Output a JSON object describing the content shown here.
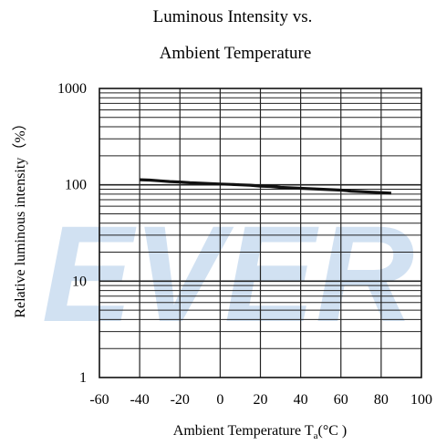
{
  "chart_data": {
    "type": "line",
    "title": [
      "Luminous Intensity vs.",
      "Ambient Temperature"
    ],
    "xlabel": "Ambient Temperature",
    "xlabel_symbol": "T",
    "xlabel_subscript": "a",
    "xlabel_unit": "(°C )",
    "ylabel": "Relative luminous intensity（%）",
    "xlim": [
      -60,
      100
    ],
    "ylim": [
      1,
      1000
    ],
    "yscale": "log",
    "x_ticks": [
      -60,
      -40,
      -20,
      0,
      20,
      40,
      60,
      80,
      100
    ],
    "y_ticks": [
      "1",
      "10",
      "100",
      "1000"
    ],
    "y_tick_values": [
      1,
      10,
      100,
      1000
    ],
    "grid": true,
    "series": [
      {
        "x": [
          -40,
          -35,
          -30,
          -25,
          -20,
          -15,
          -10,
          -5,
          0,
          5,
          10,
          15,
          20,
          25,
          30,
          35,
          40,
          45,
          50,
          55,
          60,
          65,
          70,
          75,
          80,
          85
        ],
        "y": [
          113,
          112,
          110,
          108,
          107,
          105,
          104,
          103,
          102,
          101,
          100,
          99,
          97,
          96,
          94,
          93,
          92,
          91,
          90,
          89,
          88,
          86,
          85,
          84,
          83,
          82
        ]
      }
    ],
    "watermark": "EVER",
    "line_color": "#111111",
    "grid_color": "#222222",
    "watermark_color": "#c9dcf0"
  }
}
